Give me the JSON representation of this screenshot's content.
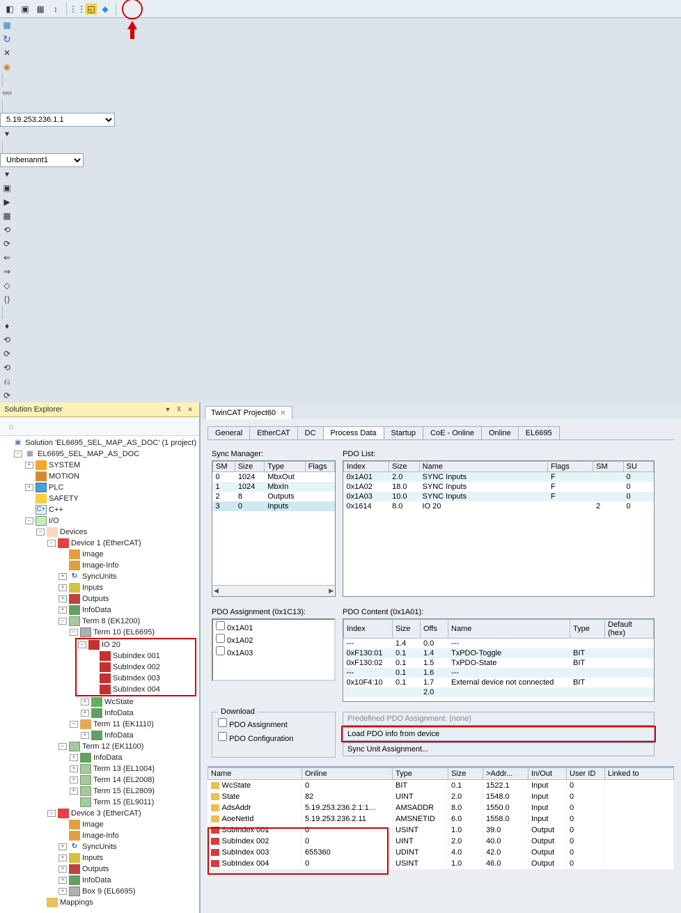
{
  "toolbar": {
    "addr": "5.19.253.236.1.1",
    "target": "Unbenannt1"
  },
  "solExplorer": {
    "title": "Solution Explorer",
    "solution": "Solution 'EL6695_SEL_MAP_AS_DOC' (1 project)",
    "project": "EL6695_SEL_MAP_AS_DOC",
    "n_system": "SYSTEM",
    "n_motion": "MOTION",
    "n_plc": "PLC",
    "n_safety": "SAFETY",
    "n_cpp": "C++",
    "n_io": "I/O",
    "n_devices": "Devices",
    "n_dev1": "Device 1 (EtherCAT)",
    "n_image": "Image",
    "n_imageinfo": "Image-Info",
    "n_syncunits": "SyncUnits",
    "n_inputs": "Inputs",
    "n_outputs": "Outputs",
    "n_infodata": "InfoData",
    "n_term8": "Term 8 (EK1200)",
    "n_term10": "Term 10 (EL6695)",
    "n_io20": "IO 20",
    "n_sub1": "SubIndex 001",
    "n_sub2": "SubIndex 002",
    "n_sub3": "SubIndex 003",
    "n_sub4": "SubIndex 004",
    "n_wcstate": "WcState",
    "n_term11": "Term 11 (EK1110)",
    "n_term12": "Term 12 (EK1100)",
    "n_term13": "Term 13 (EL1004)",
    "n_term14": "Term 14 (EL2008)",
    "n_term15a": "Term 15 (EL2809)",
    "n_term15b": "Term 15 (EL9011)",
    "n_dev3": "Device 3 (EtherCAT)",
    "n_box9": "Box 9 (EL6695)",
    "n_mappings": "Mappings"
  },
  "docTab": "TwinCAT Project60",
  "innerTabs": [
    "General",
    "EtherCAT",
    "DC",
    "Process Data",
    "Startup",
    "CoE - Online",
    "Online",
    "EL6695"
  ],
  "activeTab": 3,
  "syncMgr": {
    "label": "Sync Manager:",
    "cols": [
      "SM",
      "Size",
      "Type",
      "Flags"
    ],
    "rows": [
      [
        "0",
        "1024",
        "MbxOut",
        ""
      ],
      [
        "1",
        "1024",
        "MbxIn",
        ""
      ],
      [
        "2",
        "8",
        "Outputs",
        ""
      ],
      [
        "3",
        "0",
        "Inputs",
        ""
      ]
    ],
    "sel": 3
  },
  "pdoList": {
    "label": "PDO List:",
    "cols": [
      "Index",
      "Size",
      "Name",
      "Flags",
      "SM",
      "SU"
    ],
    "rows": [
      [
        "0x1A01",
        "2.0",
        "SYNC Inputs",
        "F",
        "",
        "0"
      ],
      [
        "0x1A02",
        "18.0",
        "SYNC Inputs",
        "F",
        "",
        "0"
      ],
      [
        "0x1A03",
        "10.0",
        "SYNC Inputs",
        "F",
        "",
        "0"
      ],
      [
        "0x1614",
        "8.0",
        "IO 20",
        "",
        "2",
        "0"
      ]
    ]
  },
  "pdoAssign": {
    "label": "PDO Assignment (0x1C13):",
    "items": [
      "0x1A01",
      "0x1A02",
      "0x1A03"
    ]
  },
  "pdoContent": {
    "label": "PDO Content (0x1A01):",
    "cols": [
      "Index",
      "Size",
      "Offs",
      "Name",
      "Type",
      "Default (hex)"
    ],
    "rows": [
      [
        "---",
        "1.4",
        "0.0",
        "---",
        "",
        ""
      ],
      [
        "0xF130:01",
        "0.1",
        "1.4",
        "TxPDO-Toggle",
        "BIT",
        ""
      ],
      [
        "0xF130:02",
        "0.1",
        "1.5",
        "TxPDO-State",
        "BIT",
        ""
      ],
      [
        "---",
        "0.1",
        "1.6",
        "---",
        "",
        ""
      ],
      [
        "0x10F4:10",
        "0.1",
        "1.7",
        "External device not connected",
        "BIT",
        ""
      ],
      [
        "",
        "",
        "2.0",
        "",
        "",
        ""
      ]
    ]
  },
  "download": {
    "label": "Download",
    "opt1": "PDO Assignment",
    "opt2": "PDO Configuration"
  },
  "pred": {
    "b1": "Predefined PDO Assignment: (none)",
    "b2": "Load PDO info from device",
    "b3": "Sync Unit Assignment..."
  },
  "varGrid": {
    "cols": [
      "Name",
      "Online",
      "Type",
      "Size",
      ">Addr...",
      "In/Out",
      "User ID",
      "Linked to"
    ],
    "rows": [
      {
        "ico": "y",
        "n": "WcState",
        "o": "0",
        "t": "BIT",
        "s": "0.1",
        "a": "1522.1",
        "io": "Input",
        "u": "0",
        "l": ""
      },
      {
        "ico": "y",
        "n": "State",
        "o": "82",
        "t": "UINT",
        "s": "2.0",
        "a": "1548.0",
        "io": "Input",
        "u": "0",
        "l": ""
      },
      {
        "ico": "y",
        "n": "AdsAddr",
        "o": "5.19.253.236.2.1:1...",
        "t": "AMSADDR",
        "s": "8.0",
        "a": "1550.0",
        "io": "Input",
        "u": "0",
        "l": ""
      },
      {
        "ico": "y",
        "n": "AoeNetId",
        "o": "5.19.253.236.2.11",
        "t": "AMSNETID",
        "s": "6.0",
        "a": "1558.0",
        "io": "Input",
        "u": "0",
        "l": ""
      },
      {
        "ico": "r",
        "n": "SubIndex 001",
        "o": "0",
        "t": "USINT",
        "s": "1.0",
        "a": "39.0",
        "io": "Output",
        "u": "0",
        "l": ""
      },
      {
        "ico": "r",
        "n": "SubIndex 002",
        "o": "0",
        "t": "UINT",
        "s": "2.0",
        "a": "40.0",
        "io": "Output",
        "u": "0",
        "l": ""
      },
      {
        "ico": "r",
        "n": "SubIndex 003",
        "o": "655360",
        "t": "UDINT",
        "s": "4.0",
        "a": "42.0",
        "io": "Output",
        "u": "0",
        "l": ""
      },
      {
        "ico": "r",
        "n": "SubIndex 004",
        "o": "0",
        "t": "USINT",
        "s": "1.0",
        "a": "46.0",
        "io": "Output",
        "u": "0",
        "l": ""
      }
    ]
  }
}
